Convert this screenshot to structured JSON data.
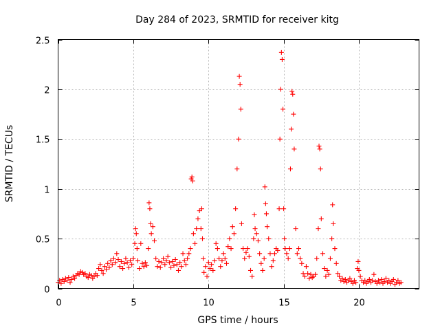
{
  "chart_data": {
    "type": "scatter",
    "title": "Day 284 of 2023, SRMTID for receiver kitg",
    "xlabel": "GPS time / hours",
    "ylabel": "SRMTID / TECUs",
    "xlim": [
      0,
      24
    ],
    "ylim": [
      0,
      2.5
    ],
    "xticks": [
      0,
      5,
      10,
      15,
      20
    ],
    "xtick_labels": [
      "0",
      "5",
      "10",
      "15",
      "20"
    ],
    "yticks": [
      0,
      0.5,
      1,
      1.5,
      2,
      2.5
    ],
    "ytick_labels": [
      "0",
      "0.5",
      "1",
      "1.5",
      "2",
      "2.5"
    ],
    "grid": true,
    "marker": "+",
    "color": "#ff0000",
    "series": [
      {
        "name": "kitg",
        "points": [
          [
            0.0,
            0.06
          ],
          [
            0.1,
            0.08
          ],
          [
            0.2,
            0.05
          ],
          [
            0.3,
            0.09
          ],
          [
            0.4,
            0.07
          ],
          [
            0.5,
            0.1
          ],
          [
            0.6,
            0.08
          ],
          [
            0.7,
            0.11
          ],
          [
            0.8,
            0.06
          ],
          [
            0.9,
            0.09
          ],
          [
            1.0,
            0.12
          ],
          [
            1.1,
            0.1
          ],
          [
            1.2,
            0.13
          ],
          [
            1.3,
            0.15
          ],
          [
            1.4,
            0.14
          ],
          [
            1.5,
            0.17
          ],
          [
            1.6,
            0.16
          ],
          [
            1.7,
            0.14
          ],
          [
            1.8,
            0.15
          ],
          [
            1.9,
            0.12
          ],
          [
            2.0,
            0.11
          ],
          [
            2.1,
            0.14
          ],
          [
            2.2,
            0.13
          ],
          [
            2.3,
            0.1
          ],
          [
            2.4,
            0.12
          ],
          [
            2.5,
            0.15
          ],
          [
            2.6,
            0.13
          ],
          [
            2.7,
            0.2
          ],
          [
            2.8,
            0.24
          ],
          [
            2.9,
            0.18
          ],
          [
            3.0,
            0.15
          ],
          [
            3.1,
            0.22
          ],
          [
            3.2,
            0.19
          ],
          [
            3.3,
            0.25
          ],
          [
            3.4,
            0.21
          ],
          [
            3.5,
            0.28
          ],
          [
            3.6,
            0.24
          ],
          [
            3.7,
            0.3
          ],
          [
            3.8,
            0.26
          ],
          [
            3.9,
            0.35
          ],
          [
            4.0,
            0.29
          ],
          [
            4.1,
            0.22
          ],
          [
            4.2,
            0.27
          ],
          [
            4.3,
            0.2
          ],
          [
            4.4,
            0.25
          ],
          [
            4.5,
            0.3
          ],
          [
            4.6,
            0.26
          ],
          [
            4.7,
            0.21
          ],
          [
            4.8,
            0.28
          ],
          [
            4.9,
            0.24
          ],
          [
            5.0,
            0.3
          ],
          [
            5.1,
            0.45
          ],
          [
            5.15,
            0.6
          ],
          [
            5.2,
            0.55
          ],
          [
            5.25,
            0.4
          ],
          [
            5.3,
            0.28
          ],
          [
            5.4,
            0.2
          ],
          [
            5.5,
            0.45
          ],
          [
            5.6,
            0.25
          ],
          [
            5.7,
            0.22
          ],
          [
            5.8,
            0.26
          ],
          [
            5.9,
            0.23
          ],
          [
            6.0,
            0.4
          ],
          [
            6.05,
            0.86
          ],
          [
            6.1,
            0.8
          ],
          [
            6.15,
            0.65
          ],
          [
            6.2,
            0.55
          ],
          [
            6.3,
            0.62
          ],
          [
            6.4,
            0.48
          ],
          [
            6.5,
            0.3
          ],
          [
            6.6,
            0.22
          ],
          [
            6.7,
            0.27
          ],
          [
            6.8,
            0.21
          ],
          [
            6.9,
            0.26
          ],
          [
            7.0,
            0.3
          ],
          [
            7.1,
            0.24
          ],
          [
            7.2,
            0.28
          ],
          [
            7.3,
            0.32
          ],
          [
            7.4,
            0.26
          ],
          [
            7.5,
            0.21
          ],
          [
            7.6,
            0.27
          ],
          [
            7.7,
            0.23
          ],
          [
            7.8,
            0.29
          ],
          [
            7.9,
            0.24
          ],
          [
            8.0,
            0.18
          ],
          [
            8.1,
            0.26
          ],
          [
            8.2,
            0.22
          ],
          [
            8.3,
            0.35
          ],
          [
            8.4,
            0.28
          ],
          [
            8.5,
            0.24
          ],
          [
            8.6,
            0.3
          ],
          [
            8.7,
            0.35
          ],
          [
            8.8,
            0.4
          ],
          [
            8.85,
            1.1
          ],
          [
            8.9,
            1.12
          ],
          [
            8.95,
            1.08
          ],
          [
            9.0,
            0.55
          ],
          [
            9.1,
            0.45
          ],
          [
            9.2,
            0.6
          ],
          [
            9.3,
            0.7
          ],
          [
            9.4,
            0.78
          ],
          [
            9.5,
            0.6
          ],
          [
            9.55,
            0.8
          ],
          [
            9.6,
            0.5
          ],
          [
            9.65,
            0.3
          ],
          [
            9.7,
            0.16
          ],
          [
            9.8,
            0.22
          ],
          [
            9.9,
            0.12
          ],
          [
            10.0,
            0.26
          ],
          [
            10.1,
            0.2
          ],
          [
            10.2,
            0.24
          ],
          [
            10.3,
            0.18
          ],
          [
            10.4,
            0.28
          ],
          [
            10.5,
            0.45
          ],
          [
            10.6,
            0.4
          ],
          [
            10.7,
            0.3
          ],
          [
            10.8,
            0.22
          ],
          [
            10.9,
            0.28
          ],
          [
            11.0,
            0.35
          ],
          [
            11.1,
            0.3
          ],
          [
            11.2,
            0.25
          ],
          [
            11.3,
            0.42
          ],
          [
            11.4,
            0.5
          ],
          [
            11.5,
            0.4
          ],
          [
            11.6,
            0.62
          ],
          [
            11.7,
            0.55
          ],
          [
            11.8,
            0.8
          ],
          [
            11.9,
            1.2
          ],
          [
            12.0,
            1.5
          ],
          [
            12.05,
            2.13
          ],
          [
            12.1,
            2.05
          ],
          [
            12.15,
            1.8
          ],
          [
            12.2,
            0.65
          ],
          [
            12.3,
            0.4
          ],
          [
            12.4,
            0.3
          ],
          [
            12.5,
            0.36
          ],
          [
            12.6,
            0.4
          ],
          [
            12.7,
            0.32
          ],
          [
            12.8,
            0.18
          ],
          [
            12.9,
            0.12
          ],
          [
            13.0,
            0.5
          ],
          [
            13.05,
            0.74
          ],
          [
            13.1,
            0.6
          ],
          [
            13.2,
            0.55
          ],
          [
            13.3,
            0.48
          ],
          [
            13.4,
            0.35
          ],
          [
            13.5,
            0.25
          ],
          [
            13.6,
            0.18
          ],
          [
            13.7,
            0.3
          ],
          [
            13.75,
            1.02
          ],
          [
            13.8,
            0.85
          ],
          [
            13.85,
            0.75
          ],
          [
            13.9,
            0.62
          ],
          [
            14.0,
            0.5
          ],
          [
            14.1,
            0.35
          ],
          [
            14.2,
            0.22
          ],
          [
            14.3,
            0.28
          ],
          [
            14.4,
            0.35
          ],
          [
            14.5,
            0.4
          ],
          [
            14.6,
            0.38
          ],
          [
            14.7,
            0.8
          ],
          [
            14.75,
            1.5
          ],
          [
            14.8,
            2.0
          ],
          [
            14.85,
            2.37
          ],
          [
            14.9,
            2.3
          ],
          [
            14.95,
            1.8
          ],
          [
            15.0,
            0.8
          ],
          [
            15.05,
            0.5
          ],
          [
            15.1,
            0.4
          ],
          [
            15.2,
            0.35
          ],
          [
            15.3,
            0.3
          ],
          [
            15.4,
            0.4
          ],
          [
            15.45,
            1.2
          ],
          [
            15.5,
            1.6
          ],
          [
            15.55,
            1.98
          ],
          [
            15.6,
            1.95
          ],
          [
            15.65,
            1.75
          ],
          [
            15.7,
            1.4
          ],
          [
            15.8,
            0.6
          ],
          [
            15.9,
            0.35
          ],
          [
            16.0,
            0.4
          ],
          [
            16.1,
            0.3
          ],
          [
            16.2,
            0.25
          ],
          [
            16.3,
            0.15
          ],
          [
            16.4,
            0.12
          ],
          [
            16.5,
            0.22
          ],
          [
            16.6,
            0.15
          ],
          [
            16.7,
            0.1
          ],
          [
            16.8,
            0.14
          ],
          [
            16.9,
            0.11
          ],
          [
            17.0,
            0.12
          ],
          [
            17.1,
            0.14
          ],
          [
            17.2,
            0.3
          ],
          [
            17.3,
            0.6
          ],
          [
            17.35,
            1.43
          ],
          [
            17.4,
            1.4
          ],
          [
            17.45,
            1.2
          ],
          [
            17.5,
            0.7
          ],
          [
            17.6,
            0.35
          ],
          [
            17.7,
            0.2
          ],
          [
            17.8,
            0.12
          ],
          [
            17.9,
            0.18
          ],
          [
            18.0,
            0.14
          ],
          [
            18.1,
            0.3
          ],
          [
            18.2,
            0.5
          ],
          [
            18.25,
            0.84
          ],
          [
            18.3,
            0.65
          ],
          [
            18.4,
            0.4
          ],
          [
            18.5,
            0.25
          ],
          [
            18.6,
            0.15
          ],
          [
            18.7,
            0.12
          ],
          [
            18.8,
            0.08
          ],
          [
            18.9,
            0.1
          ],
          [
            19.0,
            0.07
          ],
          [
            19.1,
            0.09
          ],
          [
            19.2,
            0.06
          ],
          [
            19.3,
            0.08
          ],
          [
            19.4,
            0.1
          ],
          [
            19.5,
            0.07
          ],
          [
            19.6,
            0.05
          ],
          [
            19.7,
            0.08
          ],
          [
            19.8,
            0.06
          ],
          [
            19.9,
            0.2
          ],
          [
            19.95,
            0.27
          ],
          [
            20.0,
            0.18
          ],
          [
            20.1,
            0.12
          ],
          [
            20.2,
            0.08
          ],
          [
            20.3,
            0.06
          ],
          [
            20.4,
            0.08
          ],
          [
            20.5,
            0.05
          ],
          [
            20.6,
            0.07
          ],
          [
            20.7,
            0.09
          ],
          [
            20.8,
            0.06
          ],
          [
            20.9,
            0.08
          ],
          [
            21.0,
            0.14
          ],
          [
            21.1,
            0.07
          ],
          [
            21.2,
            0.05
          ],
          [
            21.3,
            0.08
          ],
          [
            21.4,
            0.06
          ],
          [
            21.5,
            0.09
          ],
          [
            21.6,
            0.05
          ],
          [
            21.7,
            0.07
          ],
          [
            21.8,
            0.1
          ],
          [
            21.9,
            0.06
          ],
          [
            22.0,
            0.08
          ],
          [
            22.1,
            0.05
          ],
          [
            22.2,
            0.07
          ],
          [
            22.3,
            0.09
          ],
          [
            22.4,
            0.04
          ],
          [
            22.5,
            0.06
          ],
          [
            22.6,
            0.08
          ],
          [
            22.7,
            0.05
          ],
          [
            22.8,
            0.06
          ]
        ]
      }
    ]
  }
}
